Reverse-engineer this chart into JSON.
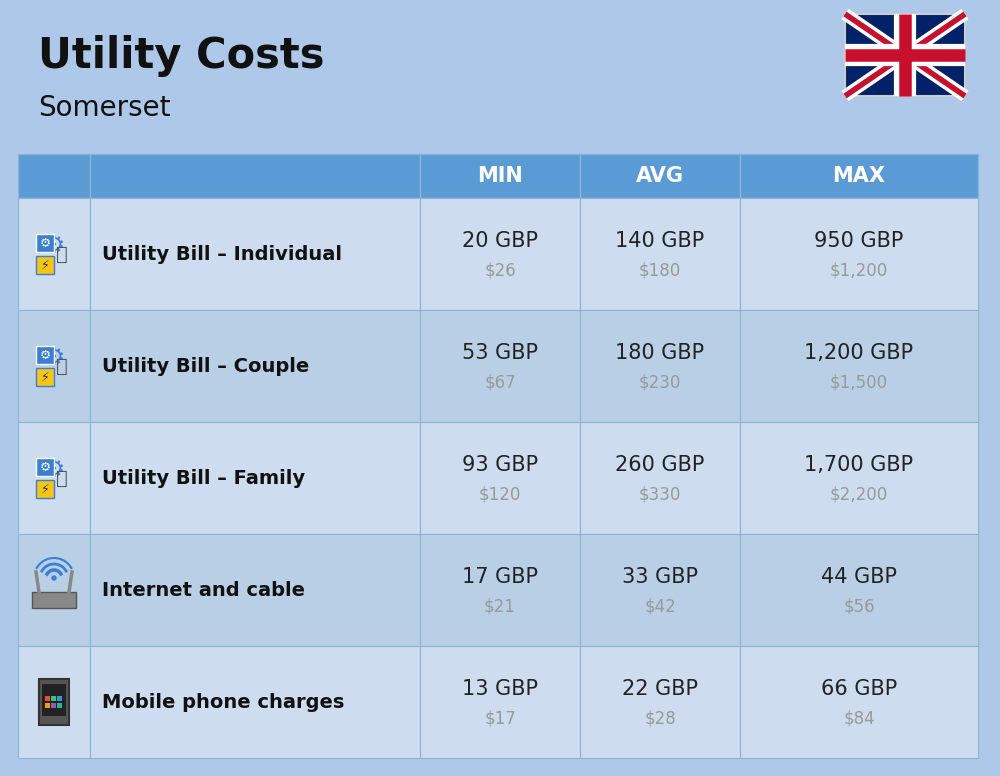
{
  "title": "Utility Costs",
  "subtitle": "Somerset",
  "background_color": "#adc8e8",
  "header_color": "#5b9bd5",
  "header_text_color": "#ffffff",
  "row_colors": [
    "#cddcee",
    "#b8cfe6",
    "#cddcee",
    "#b8cfe6",
    "#cddcee"
  ],
  "border_color": "#8ab4d4",
  "title_color": "#111111",
  "label_color": "#111111",
  "value_color": "#222222",
  "usd_color": "#999999",
  "headers": [
    "MIN",
    "AVG",
    "MAX"
  ],
  "rows": [
    {
      "label": "Utility Bill – Individual",
      "min_gbp": "20 GBP",
      "min_usd": "$26",
      "avg_gbp": "140 GBP",
      "avg_usd": "$180",
      "max_gbp": "950 GBP",
      "max_usd": "$1,200"
    },
    {
      "label": "Utility Bill – Couple",
      "min_gbp": "53 GBP",
      "min_usd": "$67",
      "avg_gbp": "180 GBP",
      "avg_usd": "$230",
      "max_gbp": "1,200 GBP",
      "max_usd": "$1,500"
    },
    {
      "label": "Utility Bill – Family",
      "min_gbp": "93 GBP",
      "min_usd": "$120",
      "avg_gbp": "260 GBP",
      "avg_usd": "$330",
      "max_gbp": "1,700 GBP",
      "max_usd": "$2,200"
    },
    {
      "label": "Internet and cable",
      "min_gbp": "17 GBP",
      "min_usd": "$21",
      "avg_gbp": "33 GBP",
      "avg_usd": "$42",
      "max_gbp": "44 GBP",
      "max_usd": "$56"
    },
    {
      "label": "Mobile phone charges",
      "min_gbp": "13 GBP",
      "min_usd": "$17",
      "avg_gbp": "22 GBP",
      "avg_usd": "$28",
      "max_gbp": "66 GBP",
      "max_usd": "$84"
    }
  ]
}
